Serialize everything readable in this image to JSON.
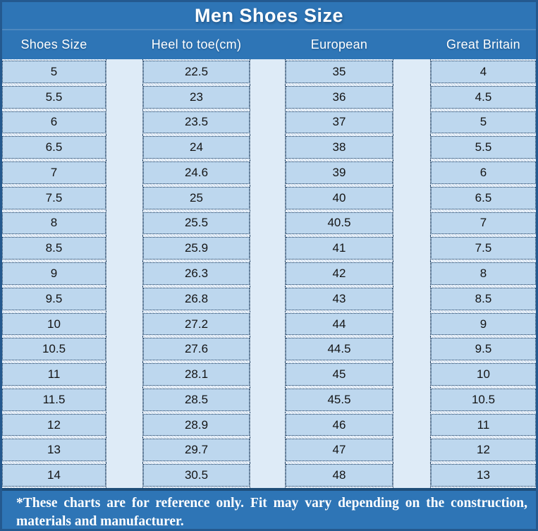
{
  "chart_data": {
    "type": "table",
    "title": "Men Shoes Size",
    "columns": [
      "Shoes Size",
      "Heel to toe(cm)",
      "European",
      "Great Britain"
    ],
    "rows": [
      [
        "5",
        "22.5",
        "35",
        "4"
      ],
      [
        "5.5",
        "23",
        "36",
        "4.5"
      ],
      [
        "6",
        "23.5",
        "37",
        "5"
      ],
      [
        "6.5",
        "24",
        "38",
        "5.5"
      ],
      [
        "7",
        "24.6",
        "39",
        "6"
      ],
      [
        "7.5",
        "25",
        "40",
        "6.5"
      ],
      [
        "8",
        "25.5",
        "40.5",
        "7"
      ],
      [
        "8.5",
        "25.9",
        "41",
        "7.5"
      ],
      [
        "9",
        "26.3",
        "42",
        "8"
      ],
      [
        "9.5",
        "26.8",
        "43",
        "8.5"
      ],
      [
        "10",
        "27.2",
        "44",
        "9"
      ],
      [
        "10.5",
        "27.6",
        "44.5",
        "9.5"
      ],
      [
        "11",
        "28.1",
        "45",
        "10"
      ],
      [
        "11.5",
        "28.5",
        "45.5",
        "10.5"
      ],
      [
        "12",
        "28.9",
        "46",
        "11"
      ],
      [
        "13",
        "29.7",
        "47",
        "12"
      ],
      [
        "14",
        "30.5",
        "48",
        "13"
      ]
    ]
  },
  "footer": {
    "note": "*These charts are for reference only. Fit may vary depending on the construction, materials and manufacturer."
  },
  "colors": {
    "band_blue": "#2E75B6",
    "cell_blue": "#BDD7EE",
    "spacer_blue": "#DEEBF7",
    "footer_divider": "#1F4E79",
    "header_text": "#FFFFFF",
    "cell_text": "#141414"
  }
}
